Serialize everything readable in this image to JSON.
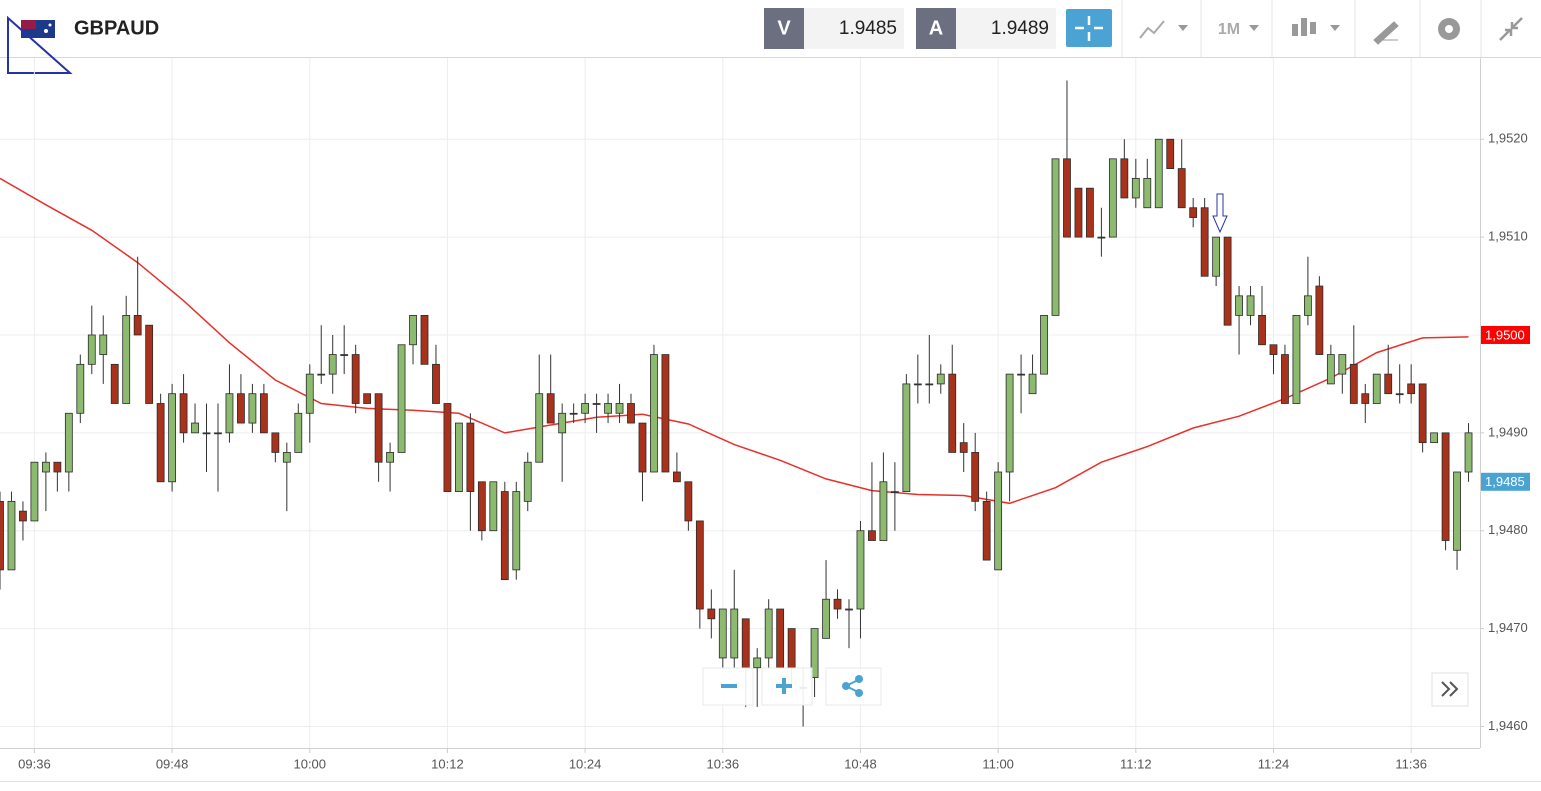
{
  "header": {
    "symbol": "GBPAUD",
    "bid_label": "V",
    "bid": "1.9485",
    "ask_label": "A",
    "ask": "1.9489",
    "timeframe": "1M"
  },
  "chart_data": {
    "type": "candlestick",
    "x": [
      "09:33",
      "09:34",
      "09:35",
      "09:36",
      "09:37",
      "09:38",
      "09:39",
      "09:40",
      "09:41",
      "09:42",
      "09:43",
      "09:44",
      "09:45",
      "09:46",
      "09:47",
      "09:48",
      "09:49",
      "09:50",
      "09:51",
      "09:52",
      "09:53",
      "09:54",
      "09:55",
      "09:56",
      "09:57",
      "09:58",
      "09:59",
      "10:00",
      "10:01",
      "10:02",
      "10:03",
      "10:04",
      "10:05",
      "10:06",
      "10:07",
      "10:08",
      "10:09",
      "10:10",
      "10:11",
      "10:12",
      "10:13",
      "10:14",
      "10:15",
      "10:16",
      "10:17",
      "10:18",
      "10:19",
      "10:20",
      "10:21",
      "10:22",
      "10:23",
      "10:24",
      "10:25",
      "10:26",
      "10:27",
      "10:28",
      "10:29",
      "10:30",
      "10:31",
      "10:32",
      "10:33",
      "10:34",
      "10:35",
      "10:36",
      "10:37",
      "10:38",
      "10:39",
      "10:40",
      "10:41",
      "10:42",
      "10:43",
      "10:44",
      "10:45",
      "10:46",
      "10:47",
      "10:48",
      "10:49",
      "10:50",
      "10:51",
      "10:52",
      "10:53",
      "10:54",
      "10:55",
      "10:56",
      "10:57",
      "10:58",
      "10:59",
      "11:00",
      "11:01",
      "11:02",
      "11:03",
      "11:04",
      "11:05",
      "11:06",
      "11:07",
      "11:08",
      "11:09",
      "11:10",
      "11:11",
      "11:12",
      "11:13",
      "11:14",
      "11:15",
      "11:16",
      "11:17",
      "11:18",
      "11:19",
      "11:20",
      "11:21",
      "11:22",
      "11:23",
      "11:24",
      "11:25",
      "11:26",
      "11:27",
      "11:28",
      "11:29",
      "11:30",
      "11:31",
      "11:32",
      "11:33",
      "11:34",
      "11:35",
      "11:36",
      "11:37",
      "11:38",
      "11:39",
      "11:40",
      "11:41"
    ],
    "open": [
      1.9483,
      1.9476,
      1.9482,
      1.9481,
      1.9486,
      1.9487,
      1.9486,
      1.9492,
      1.9497,
      1.9498,
      1.9497,
      1.9493,
      1.9502,
      1.9501,
      1.9493,
      1.9485,
      1.9494,
      1.949,
      1.949,
      1.949,
      1.949,
      1.9494,
      1.9491,
      1.9494,
      1.949,
      1.9487,
      1.9488,
      1.9492,
      1.9496,
      1.9496,
      1.9498,
      1.9498,
      1.9494,
      1.9494,
      1.9487,
      1.9488,
      1.9499,
      1.9502,
      1.9497,
      1.9493,
      1.9484,
      1.9491,
      1.9485,
      1.948,
      1.9484,
      1.9476,
      1.9483,
      1.9487,
      1.9494,
      1.949,
      1.9492,
      1.9492,
      1.9493,
      1.9492,
      1.9492,
      1.9493,
      1.9491,
      1.9486,
      1.9498,
      1.9486,
      1.9485,
      1.9481,
      1.9472,
      1.9467,
      1.9467,
      1.9471,
      1.9466,
      1.9467,
      1.9472,
      1.947,
      1.9464,
      1.9465,
      1.9469,
      1.9473,
      1.9472,
      1.9472,
      1.948,
      1.9479,
      1.9484,
      1.9484,
      1.9495,
      1.9495,
      1.9495,
      1.9496,
      1.9489,
      1.9488,
      1.9483,
      1.9476,
      1.9486,
      1.9496,
      1.9494,
      1.9496,
      1.9502,
      1.9518,
      1.9515,
      1.9515,
      1.951,
      1.951,
      1.9518,
      1.9514,
      1.9513,
      1.9513,
      1.952,
      1.9517,
      1.9513,
      1.9513,
      1.9506,
      1.951,
      1.9502,
      1.9502,
      1.9502,
      1.9499,
      1.9498,
      1.9493,
      1.9502,
      1.9505,
      1.9495,
      1.9496,
      1.9497,
      1.9494,
      1.9493,
      1.9496,
      1.9494,
      1.9495,
      1.9495,
      1.9489,
      1.949,
      1.9478,
      1.9486
    ],
    "high": [
      1.9484,
      1.9484,
      1.9483,
      1.9487,
      1.9488,
      1.9487,
      1.9492,
      1.9498,
      1.9503,
      1.9502,
      1.9497,
      1.9504,
      1.9508,
      1.9501,
      1.9494,
      1.9495,
      1.9496,
      1.9493,
      1.9493,
      1.9493,
      1.9497,
      1.9496,
      1.9495,
      1.9495,
      1.949,
      1.9489,
      1.9493,
      1.9497,
      1.9501,
      1.95,
      1.9501,
      1.9499,
      1.9494,
      1.9494,
      1.9489,
      1.9499,
      1.9502,
      1.9502,
      1.9499,
      1.9493,
      1.9491,
      1.9492,
      1.9485,
      1.9485,
      1.9485,
      1.9485,
      1.9488,
      1.9498,
      1.9498,
      1.9493,
      1.9493,
      1.9494,
      1.9494,
      1.9494,
      1.9495,
      1.9494,
      1.9491,
      1.9499,
      1.9498,
      1.9488,
      1.9485,
      1.9481,
      1.9474,
      1.9472,
      1.9476,
      1.9471,
      1.9468,
      1.9473,
      1.9472,
      1.947,
      1.9466,
      1.947,
      1.9477,
      1.9474,
      1.9473,
      1.9481,
      1.9487,
      1.9488,
      1.9487,
      1.9496,
      1.9498,
      1.95,
      1.9497,
      1.9499,
      1.9491,
      1.949,
      1.9484,
      1.9487,
      1.9496,
      1.9498,
      1.9498,
      1.9502,
      1.9518,
      1.9526,
      1.9515,
      1.9515,
      1.9513,
      1.9518,
      1.952,
      1.9518,
      1.9518,
      1.952,
      1.952,
      1.952,
      1.9514,
      1.9514,
      1.951,
      1.951,
      1.9505,
      1.9505,
      1.9505,
      1.9499,
      1.9499,
      1.9502,
      1.9508,
      1.9506,
      1.9499,
      1.9498,
      1.9501,
      1.9495,
      1.9496,
      1.9499,
      1.9497,
      1.9497,
      1.9495,
      1.949,
      1.949,
      1.9486,
      1.9491
    ],
    "low": [
      1.9474,
      1.9476,
      1.9479,
      1.9481,
      1.9482,
      1.9484,
      1.9484,
      1.9491,
      1.9496,
      1.9495,
      1.9493,
      1.9493,
      1.95,
      1.9493,
      1.9485,
      1.9484,
      1.9489,
      1.949,
      1.9486,
      1.9484,
      1.9489,
      1.9491,
      1.949,
      1.949,
      1.9487,
      1.9482,
      1.9488,
      1.9489,
      1.9495,
      1.9494,
      1.9496,
      1.9492,
      1.9493,
      1.9485,
      1.9484,
      1.9488,
      1.9497,
      1.9497,
      1.9493,
      1.9484,
      1.9484,
      1.948,
      1.9479,
      1.948,
      1.9475,
      1.9475,
      1.9482,
      1.9487,
      1.9491,
      1.9485,
      1.9491,
      1.9491,
      1.949,
      1.9491,
      1.9491,
      1.9491,
      1.9483,
      1.9486,
      1.9486,
      1.9485,
      1.948,
      1.947,
      1.9469,
      1.9466,
      1.9466,
      1.9462,
      1.9462,
      1.9466,
      1.9466,
      1.9464,
      1.946,
      1.9463,
      1.9469,
      1.9471,
      1.9468,
      1.9469,
      1.9479,
      1.9479,
      1.948,
      1.9484,
      1.9493,
      1.9493,
      1.9494,
      1.9488,
      1.9486,
      1.9482,
      1.9477,
      1.9476,
      1.9483,
      1.9492,
      1.9494,
      1.9496,
      1.9502,
      1.951,
      1.951,
      1.951,
      1.9508,
      1.951,
      1.9514,
      1.9513,
      1.9513,
      1.9513,
      1.9517,
      1.9513,
      1.9511,
      1.9506,
      1.9505,
      1.9501,
      1.9498,
      1.9501,
      1.9499,
      1.9496,
      1.9493,
      1.9493,
      1.9501,
      1.9498,
      1.9495,
      1.9494,
      1.9493,
      1.9491,
      1.9493,
      1.9494,
      1.9493,
      1.9493,
      1.9488,
      1.9489,
      1.9478,
      1.9476,
      1.9485
    ],
    "close": [
      1.9476,
      1.9483,
      1.9481,
      1.9487,
      1.9487,
      1.9486,
      1.9492,
      1.9497,
      1.95,
      1.95,
      1.9493,
      1.9502,
      1.95,
      1.9493,
      1.9485,
      1.9494,
      1.949,
      1.9491,
      1.949,
      1.949,
      1.9494,
      1.9491,
      1.9494,
      1.949,
      1.9488,
      1.9488,
      1.9492,
      1.9496,
      1.9496,
      1.9498,
      1.9498,
      1.9493,
      1.9493,
      1.9487,
      1.9488,
      1.9499,
      1.9502,
      1.9497,
      1.9493,
      1.9484,
      1.9491,
      1.9484,
      1.948,
      1.9485,
      1.9475,
      1.9484,
      1.9487,
      1.9494,
      1.9491,
      1.9492,
      1.9492,
      1.9493,
      1.9493,
      1.9493,
      1.9493,
      1.9491,
      1.9486,
      1.9498,
      1.9486,
      1.9485,
      1.9481,
      1.9472,
      1.9471,
      1.9472,
      1.9472,
      1.9466,
      1.9467,
      1.9472,
      1.9466,
      1.9466,
      1.9464,
      1.947,
      1.9473,
      1.9472,
      1.9472,
      1.948,
      1.9479,
      1.9485,
      1.9484,
      1.9495,
      1.9495,
      1.9495,
      1.9496,
      1.9488,
      1.9488,
      1.9483,
      1.9477,
      1.9486,
      1.9496,
      1.9496,
      1.9496,
      1.9502,
      1.9518,
      1.951,
      1.951,
      1.951,
      1.951,
      1.9518,
      1.9514,
      1.9516,
      1.9516,
      1.952,
      1.9517,
      1.9513,
      1.9512,
      1.9506,
      1.951,
      1.9501,
      1.9504,
      1.9504,
      1.9499,
      1.9498,
      1.9493,
      1.9502,
      1.9504,
      1.9498,
      1.9498,
      1.9498,
      1.9493,
      1.9493,
      1.9496,
      1.9494,
      1.9494,
      1.9494,
      1.9489,
      1.949,
      1.9479,
      1.9486,
      1.949
    ],
    "up_color": "#8cba6e",
    "down_color": "#a8321b",
    "doji_color": "#333333",
    "moving_average": {
      "color": "#e8302a",
      "x": [
        "09:33",
        "09:37",
        "09:41",
        "09:45",
        "09:49",
        "09:53",
        "09:57",
        "10:01",
        "10:05",
        "10:09",
        "10:13",
        "10:17",
        "10:21",
        "10:25",
        "10:29",
        "10:33",
        "10:37",
        "10:41",
        "10:45",
        "10:49",
        "10:53",
        "10:57",
        "11:01",
        "11:05",
        "11:09",
        "11:13",
        "11:17",
        "11:21",
        "11:25",
        "11:29",
        "11:33",
        "11:37",
        "11:41"
      ],
      "values": [
        1.9516,
        1.95133,
        1.95107,
        1.95074,
        1.95035,
        1.94992,
        1.94954,
        1.9493,
        1.94925,
        1.94923,
        1.9492,
        1.949,
        1.94908,
        1.94916,
        1.94919,
        1.94909,
        1.94888,
        1.94872,
        1.94853,
        1.94841,
        1.94837,
        1.94836,
        1.94828,
        1.94844,
        1.9487,
        1.94886,
        1.94905,
        1.94917,
        1.94935,
        1.94956,
        1.94982,
        1.94997,
        1.94998
      ]
    },
    "xlim": [
      "09:33",
      "11:42"
    ],
    "ylim": [
      1.94578,
      1.95283
    ],
    "xticks": [
      "09:36",
      "09:48",
      "10:00",
      "10:12",
      "10:24",
      "10:36",
      "10:48",
      "11:00",
      "11:12",
      "11:24",
      "11:36"
    ],
    "yticks": [
      {
        "value": 1.946,
        "label": "1,9460"
      },
      {
        "value": 1.947,
        "label": "1,9470"
      },
      {
        "value": 1.948,
        "label": "1,9480"
      },
      {
        "value": 1.949,
        "label": "1,9490"
      },
      {
        "value": 1.95,
        "label": "1,9500"
      },
      {
        "value": 1.951,
        "label": "1,9510"
      },
      {
        "value": 1.952,
        "label": "1,9520"
      }
    ],
    "grid": true,
    "price_labels": [
      {
        "value": 1.95,
        "label": "1,9500",
        "color": "#ff0000"
      },
      {
        "value": 1.9485,
        "label": "1,9485",
        "color": "#4ba3d3"
      }
    ]
  }
}
